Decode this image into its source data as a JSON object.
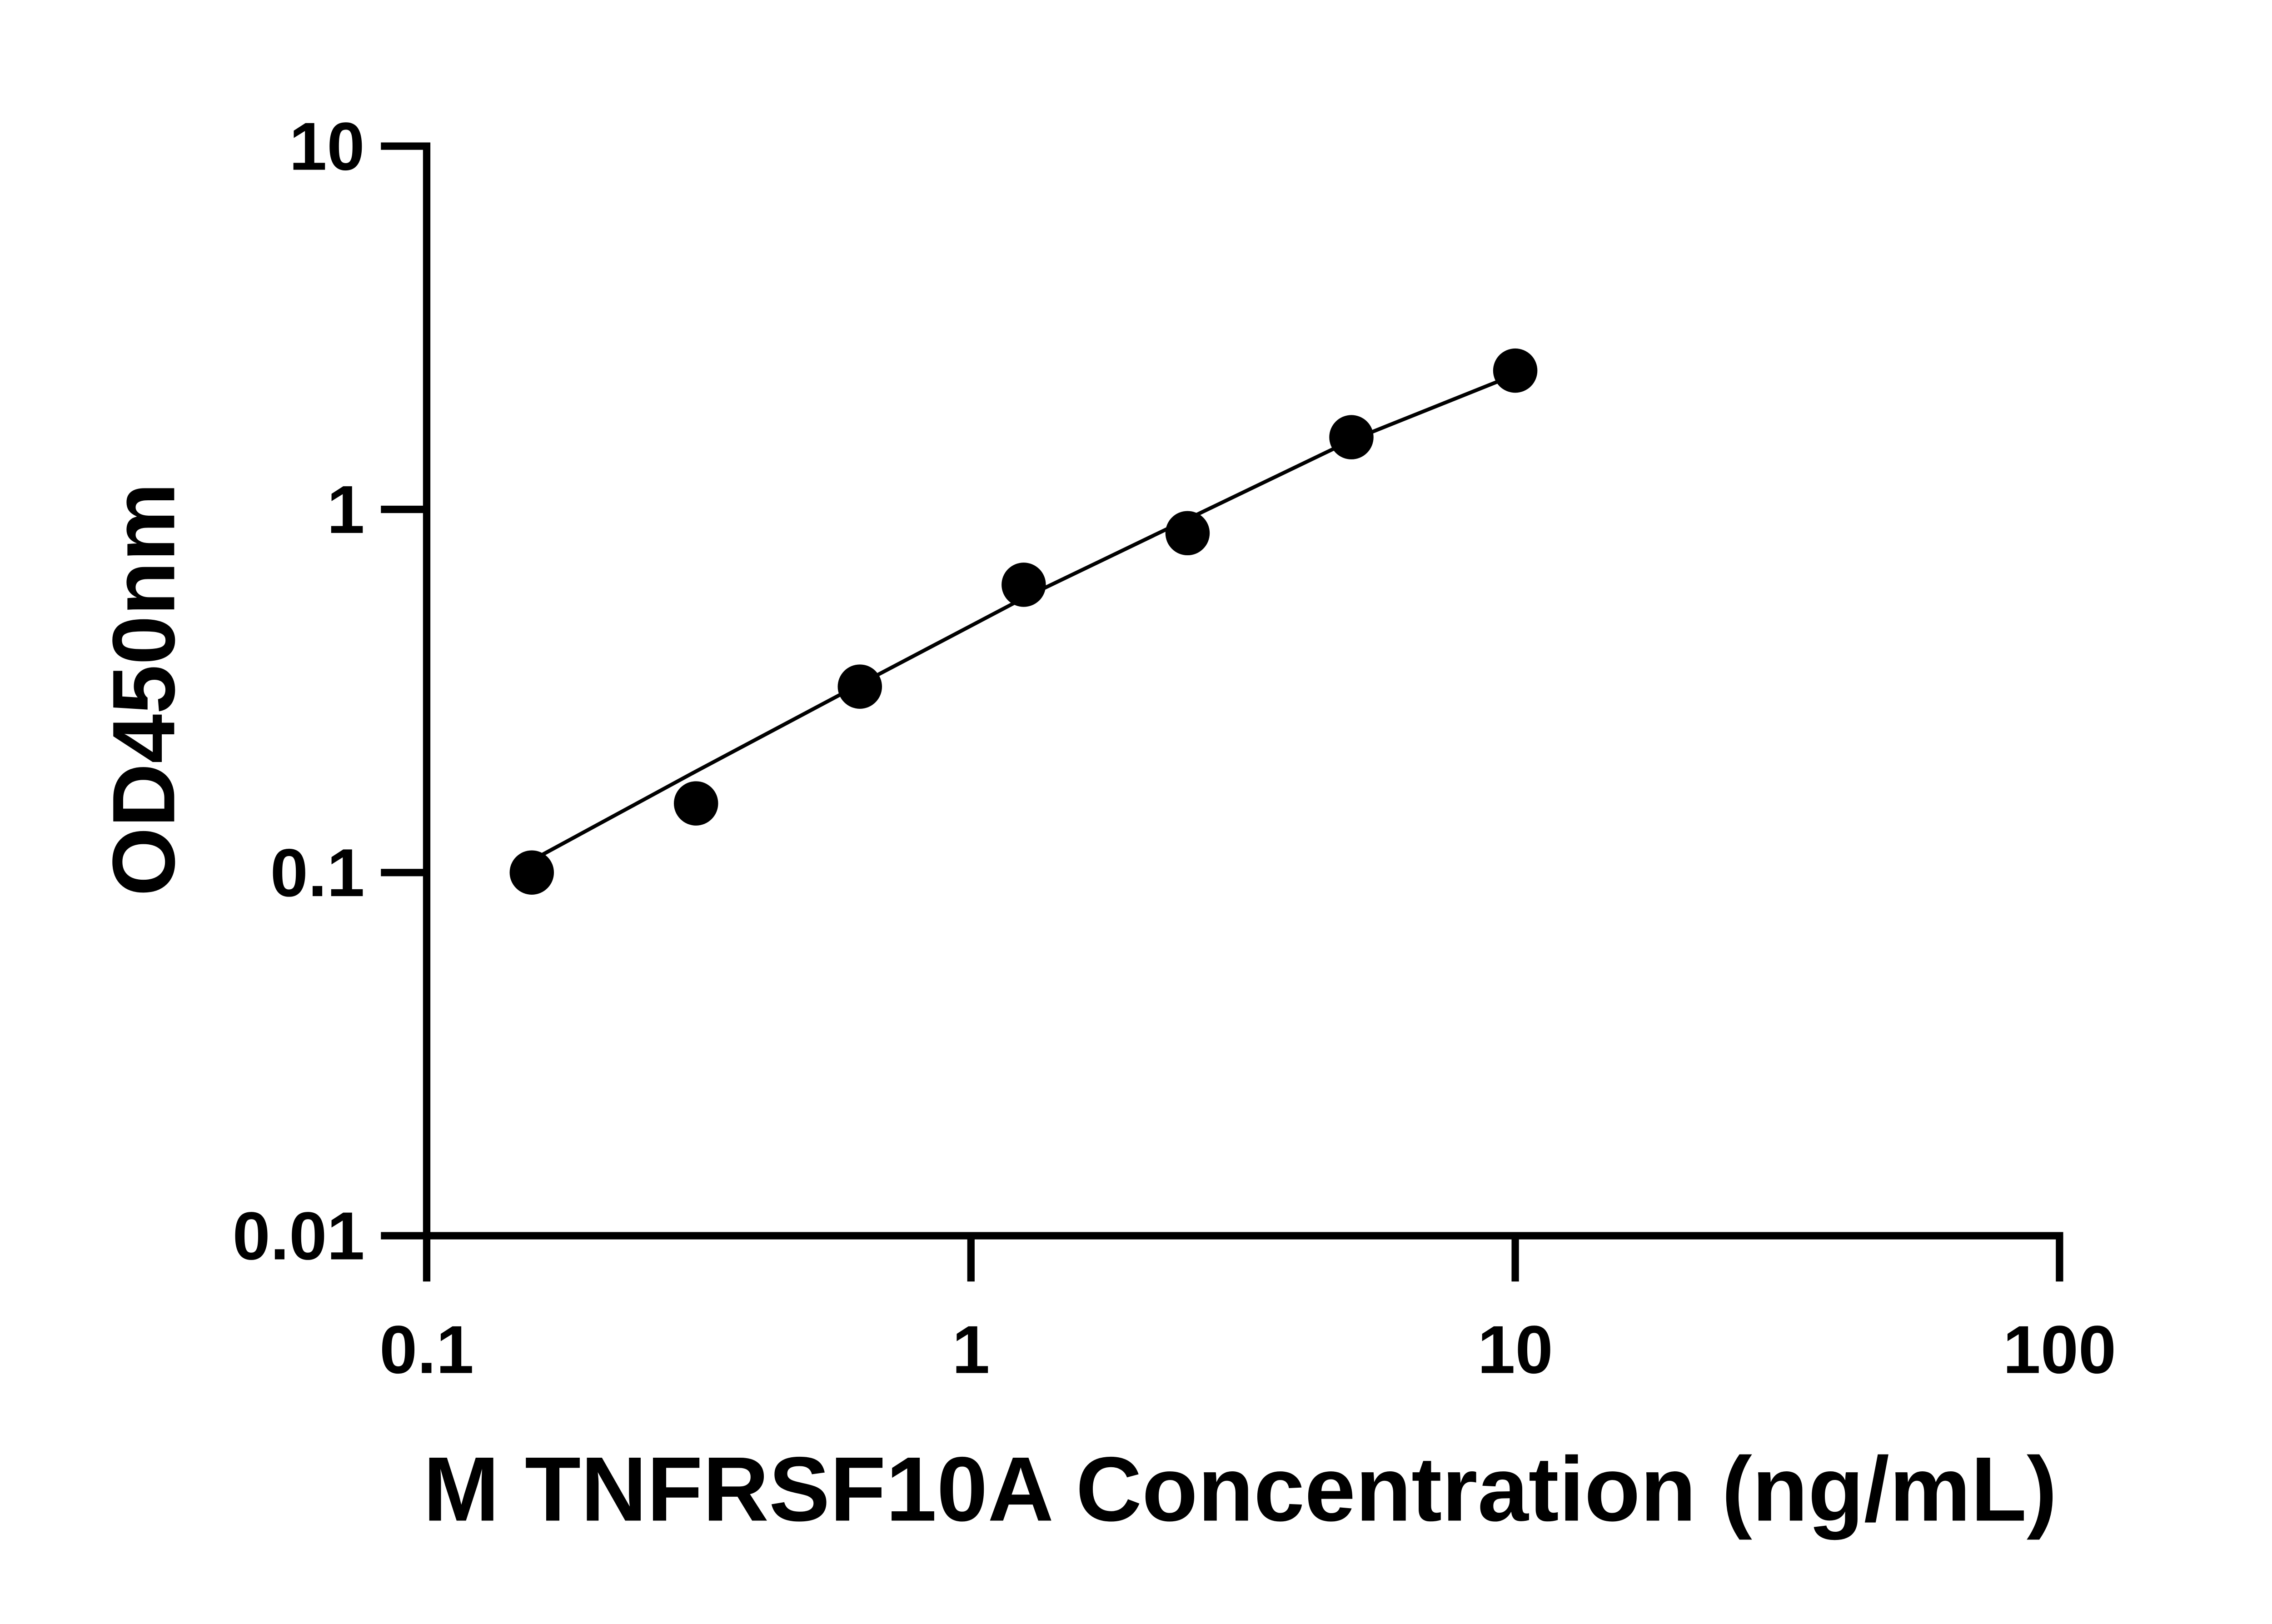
{
  "chart_data": {
    "type": "scatter",
    "x_label": "M TNFRSF10A Concentration (ng/mL)",
    "y_label": "OD450nm",
    "x": [
      0.156,
      0.3125,
      0.625,
      1.25,
      2.5,
      5,
      10
    ],
    "values": [
      0.1,
      0.155,
      0.325,
      0.62,
      0.86,
      1.58,
      2.41
    ],
    "color": "#000000",
    "fit_curve": {
      "x": [
        0.156,
        0.3125,
        0.625,
        1.25,
        2.5,
        5,
        10
      ],
      "values": [
        0.108,
        0.19,
        0.33,
        0.57,
        0.94,
        1.55,
        2.35
      ]
    },
    "xscale": "log",
    "yscale": "log",
    "xlim": [
      0.1,
      100
    ],
    "ylim": [
      0.01,
      10
    ],
    "xticks": [
      0.1,
      1,
      10,
      100
    ],
    "yticks": [
      0.01,
      0.1,
      1,
      10
    ]
  }
}
